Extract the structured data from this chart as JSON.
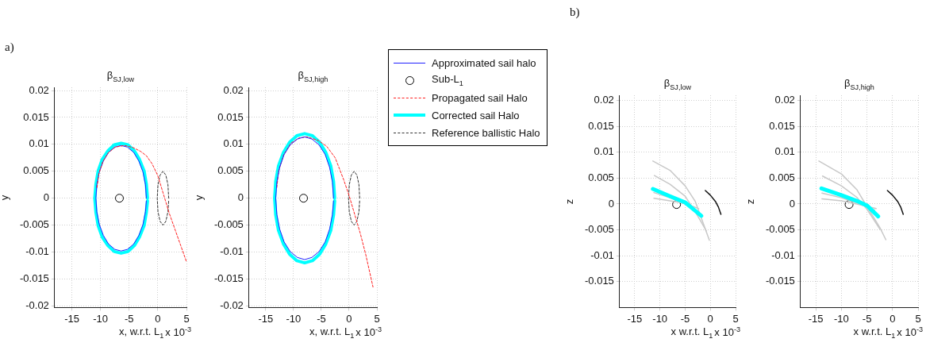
{
  "chart_data": [
    {
      "type": "line",
      "title": "β$_{SJ,low}$",
      "xlabel": "x, w.r.t. L$_{1}$",
      "ylabel": "y",
      "annotations": [
        "a)",
        "x 10$^{-3}$"
      ],
      "xlim": [
        -18,
        5
      ],
      "xticks": [
        -15,
        -10,
        -5,
        0,
        5
      ],
      "ylim": [
        -0.0203,
        0.0206
      ],
      "yticks": [
        -0.02,
        -0.015,
        -0.01,
        -0.005,
        0,
        0.005,
        0.01,
        0.015,
        0.02
      ],
      "grid": true,
      "legend": false,
      "series": [
        {
          "type": "line",
          "color": "#ff2020",
          "line_style": "dashed",
          "x": [
            -10.6,
            -10.3,
            -9.6,
            -8.6,
            -7.4,
            -5.8,
            -4.3,
            -3,
            -2,
            -1,
            0,
            1,
            2,
            3,
            4,
            5
          ],
          "values": [
            0.002,
            0.0045,
            0.0068,
            0.0085,
            0.0095,
            0.0098,
            0.0094,
            0.0087,
            0.0079,
            0.0064,
            0.0042,
            0.0007,
            -0.0028,
            -0.0058,
            -0.0088,
            -0.0118
          ]
        },
        {
          "type": "line",
          "color": "#2222ff",
          "line_style": "solid",
          "x": [
            -2.0,
            -2.15,
            -2.6,
            -3.3,
            -4.2,
            -5.3,
            -6.4,
            -7.5,
            -8.6,
            -9.5,
            -10.2,
            -10.65,
            -10.8,
            -10.65,
            -10.2,
            -9.5,
            -8.6,
            -7.5,
            -6.4,
            -5.3,
            -4.2,
            -3.3,
            -2.6,
            -2.15,
            -2.0
          ],
          "values": [
            0,
            0.0025,
            0.0049,
            0.0069,
            0.0085,
            0.0095,
            0.0098,
            0.0095,
            0.0085,
            0.0069,
            0.0049,
            0.0025,
            0,
            -0.0025,
            -0.0049,
            -0.0069,
            -0.0085,
            -0.0095,
            -0.0098,
            -0.0095,
            -0.0085,
            -0.0069,
            -0.0049,
            -0.0025,
            -0.0005
          ]
        },
        {
          "type": "scatter",
          "color": "#000000",
          "marker": "circle",
          "x": [
            -6.7
          ],
          "values": [
            0
          ]
        },
        {
          "type": "line",
          "color": "#00ffff",
          "line_style": "solid",
          "x": [
            -1.8,
            -2.0,
            -2.4,
            -3.2,
            -4.1,
            -5.2,
            -6.4,
            -7.6,
            -8.7,
            -9.7,
            -10.4,
            -10.8,
            -11.0,
            -10.8,
            -10.4,
            -9.7,
            -8.7,
            -7.6,
            -6.4,
            -5.2,
            -4.1,
            -3.2,
            -2.4,
            -2.0,
            -1.8
          ],
          "values": [
            0,
            0.0026,
            0.0051,
            0.0072,
            0.0088,
            0.0099,
            0.0102,
            0.0099,
            0.0088,
            0.0072,
            0.0051,
            0.0026,
            0,
            -0.0026,
            -0.0051,
            -0.0072,
            -0.0088,
            -0.0099,
            -0.0102,
            -0.0099,
            -0.0088,
            -0.0072,
            -0.0051,
            -0.0026,
            -0.0005
          ]
        },
        {
          "type": "line",
          "color": "#333333",
          "line_style": "dashed",
          "x": [
            1.9,
            1.77,
            1.4,
            0.9,
            0.4,
            0.03,
            -0.1,
            0.03,
            0.4,
            0.9,
            1.4,
            1.77,
            1.9
          ],
          "values": [
            0,
            0.0025,
            0.0043,
            0.005,
            0.0043,
            0.0025,
            0,
            -0.0025,
            -0.0043,
            -0.005,
            -0.0043,
            -0.0025,
            -0.0004
          ]
        }
      ]
    },
    {
      "type": "line",
      "title": "β$_{SJ,high}$",
      "xlabel": "x, w.r.t. L$_{1}$",
      "ylabel": "y",
      "annotations": [
        "x 10$^{-3}$"
      ],
      "xlim": [
        -18,
        5
      ],
      "xticks": [
        -15,
        -10,
        -5,
        0,
        5
      ],
      "ylim": [
        -0.0203,
        0.0206
      ],
      "yticks": [
        -0.02,
        -0.015,
        -0.01,
        -0.005,
        0,
        0.005,
        0.01,
        0.015,
        0.02
      ],
      "grid": true,
      "legend": "right",
      "series": [
        {
          "name": "Approximated sail halo",
          "type": "line",
          "color": "#2222ff",
          "line_style": "solid",
          "x": [
            -2.8,
            -3.0,
            -3.5,
            -4.3,
            -5.4,
            -6.7,
            -8.0,
            -9.3,
            -10.6,
            -11.7,
            -12.5,
            -13.0,
            -13.2,
            -13.0,
            -12.5,
            -11.7,
            -10.6,
            -9.3,
            -8.0,
            -6.7,
            -5.4,
            -4.3,
            -3.5,
            -3.0,
            -2.8
          ],
          "values": [
            0,
            0.003,
            0.0057,
            0.0081,
            0.0099,
            0.011,
            0.0114,
            0.011,
            0.0099,
            0.0081,
            0.0057,
            0.003,
            0,
            -0.003,
            -0.0057,
            -0.0081,
            -0.0099,
            -0.011,
            -0.0114,
            -0.011,
            -0.0099,
            -0.0081,
            -0.0057,
            -0.003,
            -0.0005
          ]
        },
        {
          "name": "Sub-L$_{1}$",
          "type": "scatter",
          "color": "#000000",
          "marker": "circle",
          "x": [
            -8.2
          ],
          "values": [
            0
          ]
        },
        {
          "name": "Propagated sail Halo",
          "type": "line",
          "color": "#ff2020",
          "line_style": "dashed",
          "x": [
            -13.0,
            -12.7,
            -11.8,
            -10.5,
            -9,
            -7.5,
            -5.5,
            -4,
            -2.5,
            -1,
            0,
            1,
            2,
            3,
            4.3
          ],
          "values": [
            0.002,
            0.005,
            0.008,
            0.0102,
            0.0112,
            0.0114,
            0.0107,
            0.0096,
            0.0075,
            0.0035,
            0.0005,
            -0.003,
            -0.0065,
            -0.0105,
            -0.0165
          ]
        },
        {
          "name": "Corrected sail Halo",
          "type": "line",
          "color": "#00ffff",
          "line_style": "solid",
          "x": [
            -2.6,
            -2.8,
            -3.3,
            -4.2,
            -5.3,
            -6.6,
            -8.0,
            -9.4,
            -10.7,
            -11.8,
            -12.7,
            -13.2,
            -13.4,
            -13.2,
            -12.7,
            -11.8,
            -10.7,
            -9.4,
            -8.0,
            -6.6,
            -5.3,
            -4.2,
            -3.3,
            -2.8,
            -2.6
          ],
          "values": [
            0,
            0.0031,
            0.006,
            0.0085,
            0.0104,
            0.0116,
            0.012,
            0.0116,
            0.0104,
            0.0085,
            0.006,
            0.0031,
            0,
            -0.0031,
            -0.006,
            -0.0085,
            -0.0104,
            -0.0116,
            -0.012,
            -0.0116,
            -0.0104,
            -0.0085,
            -0.006,
            -0.0031,
            -0.0005
          ]
        },
        {
          "name": "Reference ballistic Halo",
          "type": "line",
          "color": "#333333",
          "line_style": "dashed",
          "x": [
            1.9,
            1.77,
            1.4,
            0.9,
            0.4,
            0.03,
            -0.1,
            0.03,
            0.4,
            0.9,
            1.4,
            1.77,
            1.9
          ],
          "values": [
            0,
            0.0025,
            0.0043,
            0.005,
            0.0043,
            0.0025,
            0,
            -0.0025,
            -0.0043,
            -0.005,
            -0.0043,
            -0.0025,
            -0.0004
          ]
        }
      ]
    },
    {
      "type": "line",
      "title": "β$_{SJ,low}$",
      "xlabel": "x w.r.t. L$_{1}$",
      "ylabel": "z",
      "annotations": [
        "b)",
        "x 10$^{-3}$"
      ],
      "xlim": [
        -18,
        5
      ],
      "xticks": [
        -15,
        -10,
        -5,
        0,
        5
      ],
      "ylim": [
        -0.02,
        0.021
      ],
      "yticks": [
        -0.015,
        -0.01,
        -0.005,
        0,
        0.005,
        0.01,
        0.015,
        0.02
      ],
      "grid": true,
      "legend": false,
      "series": [
        {
          "type": "line",
          "color": "#00ffff",
          "line_style": "solid",
          "x": [
            -11.4,
            -8,
            -5,
            -3.5,
            -1.8
          ],
          "values": [
            0.0029,
            0.0015,
            0.0003,
            -0.0009,
            -0.0023
          ]
        },
        {
          "type": "line",
          "color": "#c8c8c8",
          "line_style": "solid",
          "x": [
            -11.4,
            -8,
            -5,
            -3,
            -1.5,
            -0.2
          ],
          "values": [
            0.0083,
            0.0065,
            0.0035,
            0.0005,
            -0.0035,
            -0.007
          ]
        },
        {
          "type": "line",
          "color": "#c8c8c8",
          "line_style": "solid",
          "x": [
            -11.1,
            -8,
            -5,
            -3,
            -0.8
          ],
          "values": [
            0.0055,
            0.0038,
            0.0015,
            -0.0015,
            -0.0052
          ]
        },
        {
          "type": "line",
          "color": "#c8c8c8",
          "line_style": "solid",
          "x": [
            -11.2,
            -8,
            -5,
            -2.3
          ],
          "values": [
            0.0011,
            0.0006,
            0.0001,
            -0.0009
          ]
        },
        {
          "type": "line",
          "color": "#c8c8c8",
          "line_style": "solid",
          "x": [
            -11.2,
            -8,
            -5,
            -2.5
          ],
          "values": [
            0.0022,
            0.0012,
            0,
            -0.0015
          ]
        },
        {
          "type": "line",
          "color": "#111111",
          "line_style": "solid",
          "x": [
            -1.0,
            0,
            1.0,
            1.6,
            2.1
          ],
          "values": [
            0.0026,
            0.0017,
            0.0005,
            -0.0006,
            -0.002
          ]
        },
        {
          "type": "scatter",
          "color": "#000000",
          "marker": "circle",
          "x": [
            -6.7
          ],
          "values": [
            -0.0001
          ]
        }
      ]
    },
    {
      "type": "line",
      "title": "β$_{SJ,high}$",
      "xlabel": "x w.r.t. L$_{1}$",
      "ylabel": "z",
      "annotations": [
        "x 10$^{-3}$"
      ],
      "xlim": [
        -18,
        5
      ],
      "xticks": [
        -15,
        -10,
        -5,
        0,
        5
      ],
      "ylim": [
        -0.02,
        0.021
      ],
      "yticks": [
        -0.015,
        -0.01,
        -0.005,
        0,
        0.005,
        0.01,
        0.015,
        0.02
      ],
      "grid": true,
      "legend": false,
      "series": [
        {
          "type": "line",
          "color": "#00ffff",
          "line_style": "solid",
          "x": [
            -13.9,
            -10,
            -7,
            -5,
            -2.8
          ],
          "values": [
            0.003,
            0.0017,
            0.0006,
            -0.0003,
            -0.0024
          ]
        },
        {
          "type": "line",
          "color": "#c8c8c8",
          "line_style": "solid",
          "x": [
            -14.4,
            -10,
            -7,
            -5,
            -2.5,
            -1.3
          ],
          "values": [
            0.0083,
            0.0058,
            0.0028,
            -0.0005,
            -0.0045,
            -0.0069
          ]
        },
        {
          "type": "line",
          "color": "#c8c8c8",
          "line_style": "solid",
          "x": [
            -13.7,
            -10,
            -7,
            -5,
            -2.5
          ],
          "values": [
            0.0054,
            0.0035,
            0.0013,
            -0.001,
            -0.0048
          ]
        },
        {
          "type": "line",
          "color": "#c8c8c8",
          "line_style": "solid",
          "x": [
            -13.8,
            -10,
            -7,
            -3.2
          ],
          "values": [
            0.001,
            0.0006,
            0,
            -0.0009
          ]
        },
        {
          "type": "line",
          "color": "#c8c8c8",
          "line_style": "solid",
          "x": [
            -13.8,
            -10,
            -7,
            -3.5
          ],
          "values": [
            0.0021,
            0.0012,
            0.0002,
            -0.0012
          ]
        },
        {
          "type": "line",
          "color": "#111111",
          "line_style": "solid",
          "x": [
            -1.0,
            0,
            1.0,
            1.6,
            2.1
          ],
          "values": [
            0.0026,
            0.0017,
            0.0005,
            -0.0006,
            -0.002
          ]
        },
        {
          "type": "scatter",
          "color": "#000000",
          "marker": "circle",
          "x": [
            -8.5
          ],
          "values": [
            -0.0001
          ]
        }
      ]
    }
  ]
}
